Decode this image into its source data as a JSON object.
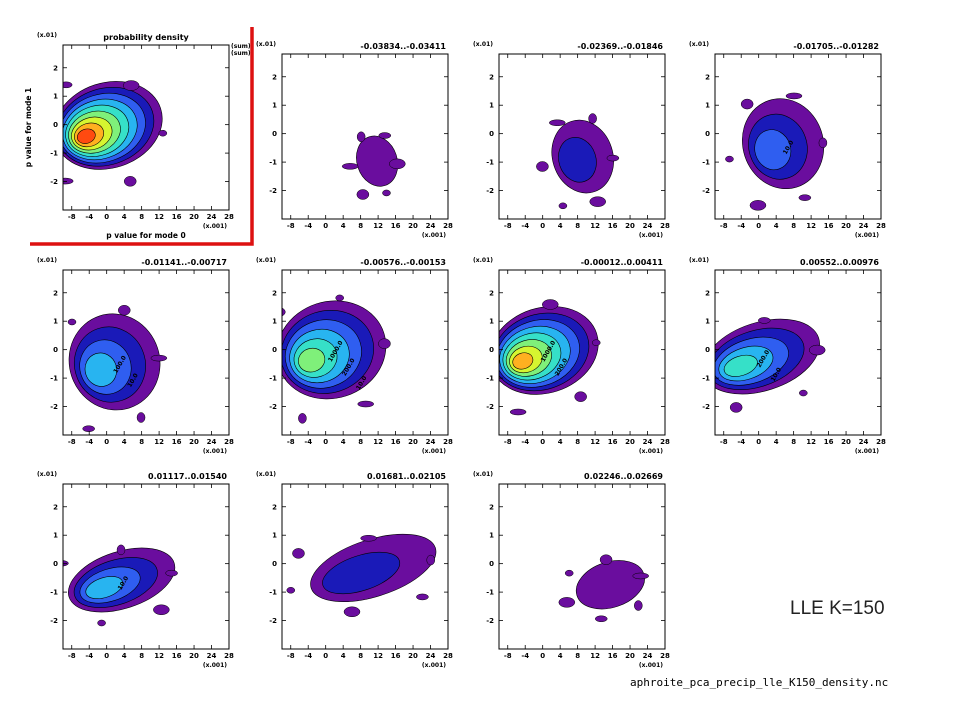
{
  "annotation": "LLE K=150",
  "filename": "aphroite_pca_precip_lle_K150_density.nc",
  "colors": {
    "levels": [
      "#6a0d9e",
      "#1a1ab8",
      "#2f5ef0",
      "#28b4f0",
      "#36e0c8",
      "#7ff07a",
      "#d6f530",
      "#ffb020",
      "#ff4a10"
    ],
    "highlight": "#dd1111"
  },
  "chart_data": {
    "type": "contour",
    "xlabel": "p value for mode 0",
    "ylabel": "p value for mode 1",
    "x_scale_label": "(x.001)",
    "y_scale_label": "(x.01)",
    "xticks": [
      "-8",
      "-4",
      "0",
      "4",
      "8",
      "12",
      "16",
      "20",
      "24",
      "28"
    ],
    "yticks": [
      "2",
      "1",
      "0",
      "-1",
      "-2"
    ],
    "xlim": [
      -10,
      28
    ],
    "ylim": [
      -3,
      2.8
    ],
    "panels": [
      {
        "title": "probability density",
        "units": [
          "(sum)",
          "(sum)"
        ],
        "highlight": true,
        "center": [
          -2,
          -0.3
        ],
        "spread": [
          11,
          1.5
        ],
        "intensity": 9,
        "labels": []
      },
      {
        "title": "-0.03834..-0.03411",
        "units": [],
        "highlight": false,
        "center": [
          11,
          -1.1
        ],
        "spread": [
          4,
          0.9
        ],
        "intensity": 1,
        "labels": []
      },
      {
        "title": "-0.02369..-0.01846",
        "units": [],
        "highlight": false,
        "center": [
          8,
          -1.0
        ],
        "spread": [
          6,
          1.3
        ],
        "intensity": 2,
        "labels": []
      },
      {
        "title": "-0.01705..-0.01282",
        "units": [],
        "highlight": false,
        "center": [
          4,
          -0.6
        ],
        "spread": [
          8,
          1.6
        ],
        "intensity": 3,
        "labels": [
          "10.0"
        ]
      },
      {
        "title": "-0.01141..-0.00717",
        "units": [],
        "highlight": false,
        "center": [
          0,
          -0.7
        ],
        "spread": [
          9,
          1.7
        ],
        "intensity": 4,
        "labels": [
          "100.0",
          "10.0"
        ]
      },
      {
        "title": "-0.00576..-0.00153",
        "units": [],
        "highlight": false,
        "center": [
          -1,
          -0.3
        ],
        "spread": [
          11,
          1.7
        ],
        "intensity": 6,
        "labels": [
          "1000.0",
          "200.0",
          "10.0"
        ]
      },
      {
        "title": "-0.00012..0.00411",
        "units": [],
        "highlight": false,
        "center": [
          -2,
          -0.3
        ],
        "spread": [
          11,
          1.5
        ],
        "intensity": 8,
        "labels": [
          "1000.0",
          "200.0"
        ]
      },
      {
        "title": "0.00552..0.00976",
        "units": [],
        "highlight": false,
        "center": [
          -2,
          -0.5
        ],
        "spread": [
          12,
          1.2
        ],
        "intensity": 5,
        "labels": [
          "200.0",
          "10.0"
        ]
      },
      {
        "title": "0.01117..0.01540",
        "units": [],
        "highlight": false,
        "center": [
          1,
          -0.8
        ],
        "spread": [
          11,
          1.0
        ],
        "intensity": 4,
        "labels": [
          "10.0"
        ]
      },
      {
        "title": "0.01681..0.02105",
        "units": [],
        "highlight": false,
        "center": [
          8,
          -0.4
        ],
        "spread": [
          13,
          1.0
        ],
        "intensity": 2,
        "labels": []
      },
      {
        "title": "0.02246..0.02669",
        "units": [],
        "highlight": false,
        "center": [
          14,
          -0.9
        ],
        "spread": [
          7,
          0.8
        ],
        "intensity": 1,
        "labels": []
      }
    ]
  }
}
